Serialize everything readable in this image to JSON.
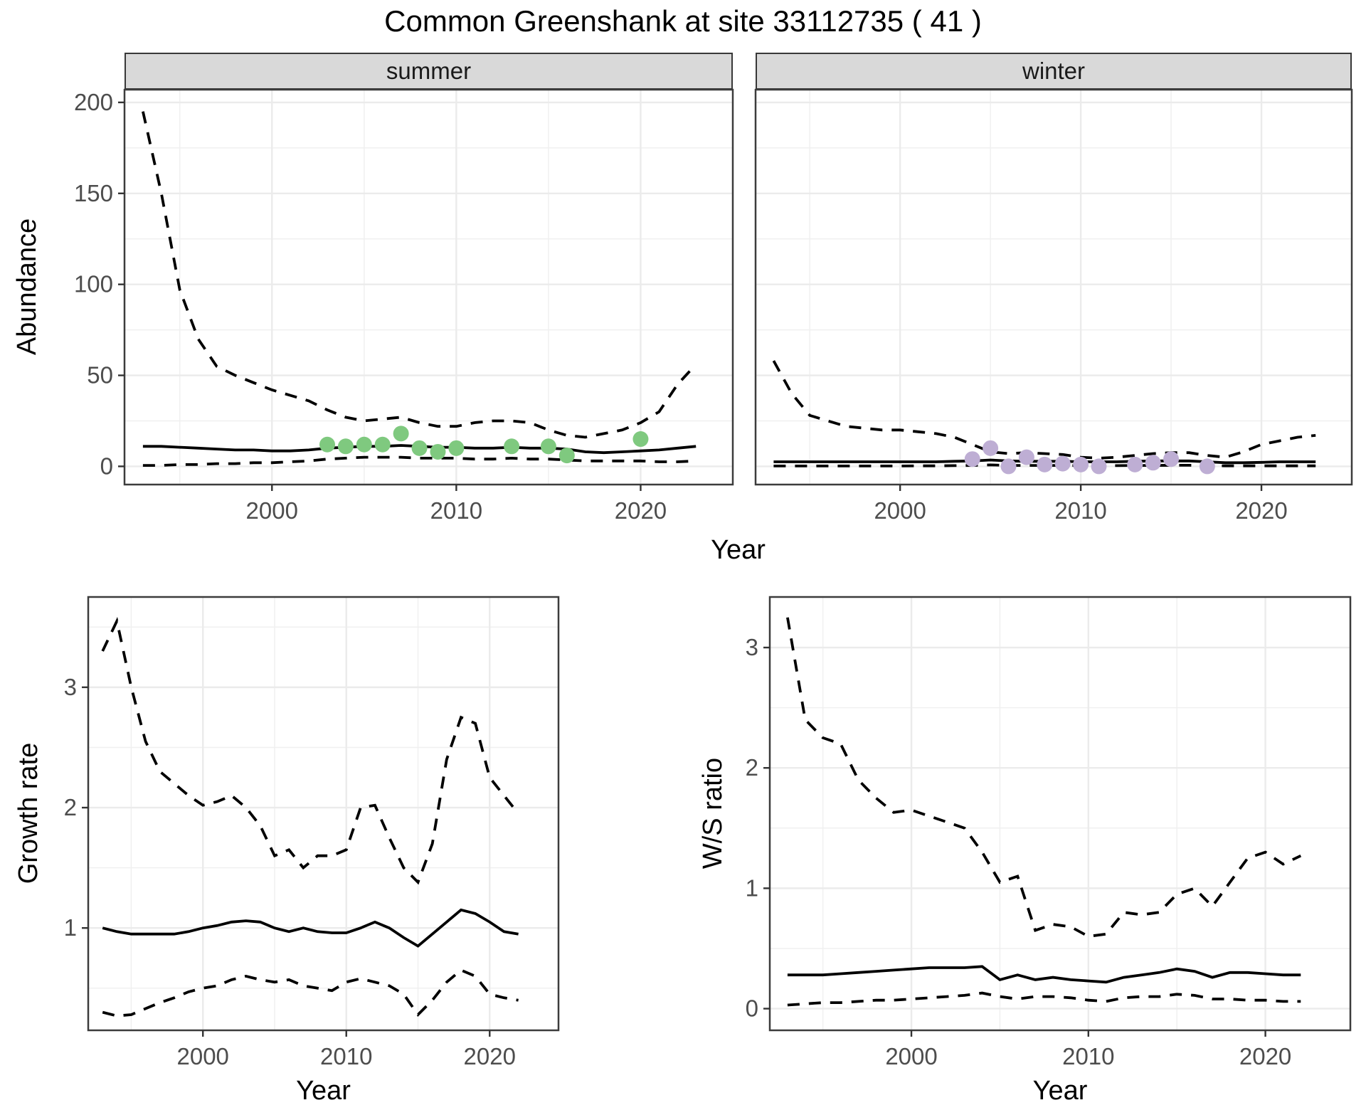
{
  "title": "Common Greenshank at site 33112735 ( 41 )",
  "facets": [
    "summer",
    "winter"
  ],
  "labels": {
    "abundance": "Abundance",
    "year": "Year",
    "growth": "Growth rate",
    "ws": "W/S ratio"
  },
  "colors": {
    "summer_point": "#7FC97F",
    "winter_point": "#BEAED4",
    "line": "#000000",
    "strip_bg": "#D9D9D9",
    "panel_border": "#3C3C3C",
    "grid_major": "#EBEBEB",
    "grid_minor": "#F0F0F0",
    "tick_label": "#4D4D4D"
  },
  "chart_data": [
    {
      "type": "line",
      "facet": "summer",
      "xlabel": "Year",
      "ylabel": "Abundance",
      "xlim": [
        1992,
        2025
      ],
      "ylim": [
        -10,
        207
      ],
      "xticks": [
        2000,
        2010,
        2020
      ],
      "yticks": [
        0,
        50,
        100,
        150,
        200
      ],
      "grid": true,
      "legend": "none",
      "series": [
        {
          "name": "upper-95ci",
          "style": "dashed",
          "x": [
            1993,
            1994,
            1995,
            1996,
            1997,
            1998,
            1999,
            2000,
            2001,
            2002,
            2003,
            2004,
            2005,
            2006,
            2007,
            2008,
            2009,
            2010,
            2011,
            2012,
            2013,
            2014,
            2015,
            2016,
            2017,
            2018,
            2019,
            2020,
            2021,
            2022,
            2023
          ],
          "values": [
            195,
            150,
            97,
            70,
            55,
            50,
            46,
            42,
            39,
            36,
            31,
            27,
            25,
            26,
            27,
            24,
            22,
            22,
            24,
            25,
            25,
            24,
            20,
            17,
            16,
            18,
            20,
            24,
            30,
            45,
            56
          ]
        },
        {
          "name": "median-fit",
          "style": "solid",
          "x": [
            1993,
            1994,
            1995,
            1996,
            1997,
            1998,
            1999,
            2000,
            2001,
            2002,
            2003,
            2004,
            2005,
            2006,
            2007,
            2008,
            2009,
            2010,
            2011,
            2012,
            2013,
            2014,
            2015,
            2016,
            2017,
            2018,
            2019,
            2020,
            2021,
            2022,
            2023
          ],
          "values": [
            11,
            11,
            10.5,
            10,
            9.5,
            9,
            9,
            8.5,
            8.5,
            9,
            10,
            10.5,
            11,
            11,
            11.5,
            11,
            10.5,
            10.5,
            10,
            10,
            10.5,
            10,
            10,
            9.5,
            8,
            7.5,
            8,
            8.5,
            9,
            10,
            11
          ]
        },
        {
          "name": "lower-95ci",
          "style": "dashed",
          "x": [
            1993,
            1994,
            1995,
            1996,
            1997,
            1998,
            1999,
            2000,
            2001,
            2002,
            2003,
            2004,
            2005,
            2006,
            2007,
            2008,
            2009,
            2010,
            2011,
            2012,
            2013,
            2014,
            2015,
            2016,
            2017,
            2018,
            2019,
            2020,
            2021,
            2022,
            2023
          ],
          "values": [
            0.5,
            0.5,
            1,
            1,
            1.5,
            1.5,
            2,
            2,
            2.5,
            3,
            4,
            4.5,
            5,
            5,
            5,
            4.5,
            4.5,
            4.5,
            4,
            4,
            4.5,
            4,
            4,
            3.5,
            3,
            3,
            3,
            3,
            2.5,
            2.5,
            3
          ]
        },
        {
          "name": "observed-counts",
          "style": "points",
          "color": "#7FC97F",
          "x": [
            2003,
            2004,
            2005,
            2006,
            2007,
            2008,
            2009,
            2010,
            2013,
            2015,
            2016,
            2020
          ],
          "values": [
            12,
            11,
            12,
            12,
            18,
            10,
            8,
            10,
            11,
            11,
            6,
            15
          ]
        }
      ]
    },
    {
      "type": "line",
      "facet": "winter",
      "xlabel": "Year",
      "ylabel": "Abundance",
      "xlim": [
        1992,
        2025
      ],
      "ylim": [
        -10,
        207
      ],
      "xticks": [
        2000,
        2010,
        2020
      ],
      "yticks": [
        0,
        50,
        100,
        150,
        200
      ],
      "grid": true,
      "legend": "none",
      "series": [
        {
          "name": "upper-95ci",
          "style": "dashed",
          "x": [
            1993,
            1994,
            1995,
            1996,
            1997,
            1998,
            1999,
            2000,
            2001,
            2002,
            2003,
            2004,
            2005,
            2006,
            2007,
            2008,
            2009,
            2010,
            2011,
            2012,
            2013,
            2014,
            2015,
            2016,
            2017,
            2018,
            2019,
            2020,
            2021,
            2022,
            2023
          ],
          "values": [
            58,
            40,
            28,
            25,
            22,
            21,
            20,
            20,
            19,
            18,
            16,
            12,
            8,
            7,
            7.5,
            7,
            6.5,
            5,
            4.5,
            5,
            6,
            7,
            7.5,
            7.5,
            6,
            5,
            8,
            12,
            14,
            16,
            17
          ]
        },
        {
          "name": "median-fit",
          "style": "solid",
          "x": [
            1993,
            1994,
            1995,
            1996,
            1997,
            1998,
            1999,
            2000,
            2001,
            2002,
            2003,
            2004,
            2005,
            2006,
            2007,
            2008,
            2009,
            2010,
            2011,
            2012,
            2013,
            2014,
            2015,
            2016,
            2017,
            2018,
            2019,
            2020,
            2021,
            2022,
            2023
          ],
          "values": [
            2.5,
            2.5,
            2.5,
            2.5,
            2.5,
            2.5,
            2.5,
            2.5,
            2.5,
            2.5,
            2.8,
            3,
            3.5,
            3,
            2.8,
            2.8,
            2.8,
            2.5,
            2.5,
            2.5,
            2.8,
            3,
            3,
            3,
            2.5,
            2,
            2,
            2.2,
            2.5,
            2.5,
            2.5
          ]
        },
        {
          "name": "lower-95ci",
          "style": "dashed",
          "x": [
            1993,
            1994,
            1995,
            1996,
            1997,
            1998,
            1999,
            2000,
            2001,
            2002,
            2003,
            2004,
            2005,
            2006,
            2007,
            2008,
            2009,
            2010,
            2011,
            2012,
            2013,
            2014,
            2015,
            2016,
            2017,
            2018,
            2019,
            2020,
            2021,
            2022,
            2023
          ],
          "values": [
            0.2,
            0.2,
            0.2,
            0.2,
            0.2,
            0.2,
            0.2,
            0.2,
            0.3,
            0.3,
            0.4,
            0.5,
            0.8,
            0.5,
            0.5,
            0.5,
            0.5,
            0.4,
            0.4,
            0.4,
            0.5,
            0.5,
            0.6,
            0.6,
            0.4,
            0.3,
            0.3,
            0.3,
            0.3,
            0.3,
            0.3
          ]
        },
        {
          "name": "observed-counts",
          "style": "points",
          "color": "#BEAED4",
          "x": [
            2004,
            2005,
            2006,
            2007,
            2008,
            2009,
            2010,
            2011,
            2013,
            2014,
            2015,
            2017
          ],
          "values": [
            4,
            10,
            0,
            5,
            1,
            1.5,
            1,
            0,
            1,
            2,
            4,
            0
          ]
        }
      ]
    },
    {
      "type": "line",
      "facet": "growth-rate",
      "xlabel": "Year",
      "ylabel": "Growth rate",
      "xlim": [
        1992,
        2024.8
      ],
      "ylim": [
        0.15,
        3.75
      ],
      "xticks": [
        2000,
        2010,
        2020
      ],
      "yticks": [
        1,
        2,
        3
      ],
      "grid": true,
      "legend": "none",
      "series": [
        {
          "name": "upper-95ci",
          "style": "dashed",
          "x": [
            1993,
            1994,
            1995,
            1996,
            1997,
            1998,
            1999,
            2000,
            2001,
            2002,
            2003,
            2004,
            2005,
            2006,
            2007,
            2008,
            2009,
            2010,
            2011,
            2012,
            2013,
            2014,
            2015,
            2016,
            2017,
            2018,
            2019,
            2020,
            2021,
            2022
          ],
          "values": [
            3.3,
            3.55,
            3.0,
            2.55,
            2.3,
            2.2,
            2.1,
            2.02,
            2.05,
            2.1,
            2.0,
            1.85,
            1.6,
            1.65,
            1.5,
            1.6,
            1.6,
            1.65,
            2.0,
            2.02,
            1.75,
            1.5,
            1.38,
            1.7,
            2.4,
            2.75,
            2.7,
            2.25,
            2.1,
            1.95
          ]
        },
        {
          "name": "median-fit",
          "style": "solid",
          "x": [
            1993,
            1994,
            1995,
            1996,
            1997,
            1998,
            1999,
            2000,
            2001,
            2002,
            2003,
            2004,
            2005,
            2006,
            2007,
            2008,
            2009,
            2010,
            2011,
            2012,
            2013,
            2014,
            2015,
            2016,
            2017,
            2018,
            2019,
            2020,
            2021,
            2022
          ],
          "values": [
            1.0,
            0.97,
            0.95,
            0.95,
            0.95,
            0.95,
            0.97,
            1.0,
            1.02,
            1.05,
            1.06,
            1.05,
            1.0,
            0.97,
            1.0,
            0.97,
            0.96,
            0.96,
            1.0,
            1.05,
            1.0,
            0.92,
            0.85,
            0.95,
            1.05,
            1.15,
            1.12,
            1.05,
            0.97,
            0.95
          ]
        },
        {
          "name": "lower-95ci",
          "style": "dashed",
          "x": [
            1993,
            1994,
            1995,
            1996,
            1997,
            1998,
            1999,
            2000,
            2001,
            2002,
            2003,
            2004,
            2005,
            2006,
            2007,
            2008,
            2009,
            2010,
            2011,
            2012,
            2013,
            2014,
            2015,
            2016,
            2017,
            2018,
            2019,
            2020,
            2021,
            2022
          ],
          "values": [
            0.3,
            0.27,
            0.28,
            0.33,
            0.38,
            0.42,
            0.47,
            0.5,
            0.52,
            0.57,
            0.6,
            0.57,
            0.55,
            0.57,
            0.52,
            0.5,
            0.48,
            0.55,
            0.58,
            0.55,
            0.52,
            0.45,
            0.28,
            0.4,
            0.55,
            0.65,
            0.6,
            0.45,
            0.42,
            0.4
          ]
        }
      ]
    },
    {
      "type": "line",
      "facet": "ws-ratio",
      "xlabel": "Year",
      "ylabel": "W/S ratio",
      "xlim": [
        1992,
        2024.8
      ],
      "ylim": [
        -0.18,
        3.42
      ],
      "xticks": [
        2000,
        2010,
        2020
      ],
      "yticks": [
        0,
        1,
        2,
        3
      ],
      "grid": true,
      "legend": "none",
      "series": [
        {
          "name": "upper-95ci",
          "style": "dashed",
          "x": [
            1993,
            1994,
            1995,
            1996,
            1997,
            1998,
            1999,
            2000,
            2001,
            2002,
            2003,
            2004,
            2005,
            2006,
            2007,
            2008,
            2009,
            2010,
            2011,
            2012,
            2013,
            2014,
            2015,
            2016,
            2017,
            2018,
            2019,
            2020,
            2021,
            2022
          ],
          "values": [
            3.25,
            2.4,
            2.25,
            2.2,
            1.9,
            1.75,
            1.63,
            1.65,
            1.6,
            1.55,
            1.5,
            1.3,
            1.05,
            1.1,
            0.65,
            0.7,
            0.68,
            0.6,
            0.62,
            0.8,
            0.78,
            0.8,
            0.95,
            1.0,
            0.85,
            1.05,
            1.25,
            1.3,
            1.2,
            1.27
          ]
        },
        {
          "name": "median-fit",
          "style": "solid",
          "x": [
            1993,
            1994,
            1995,
            1996,
            1997,
            1998,
            1999,
            2000,
            2001,
            2002,
            2003,
            2004,
            2005,
            2006,
            2007,
            2008,
            2009,
            2010,
            2011,
            2012,
            2013,
            2014,
            2015,
            2016,
            2017,
            2018,
            2019,
            2020,
            2021,
            2022
          ],
          "values": [
            0.28,
            0.28,
            0.28,
            0.29,
            0.3,
            0.31,
            0.32,
            0.33,
            0.34,
            0.34,
            0.34,
            0.35,
            0.24,
            0.28,
            0.24,
            0.26,
            0.24,
            0.23,
            0.22,
            0.26,
            0.28,
            0.3,
            0.33,
            0.31,
            0.26,
            0.3,
            0.3,
            0.29,
            0.28,
            0.28
          ]
        },
        {
          "name": "lower-95ci",
          "style": "dashed",
          "x": [
            1993,
            1994,
            1995,
            1996,
            1997,
            1998,
            1999,
            2000,
            2001,
            2002,
            2003,
            2004,
            2005,
            2006,
            2007,
            2008,
            2009,
            2010,
            2011,
            2012,
            2013,
            2014,
            2015,
            2016,
            2017,
            2018,
            2019,
            2020,
            2021,
            2022
          ],
          "values": [
            0.03,
            0.04,
            0.05,
            0.05,
            0.06,
            0.07,
            0.07,
            0.08,
            0.09,
            0.1,
            0.11,
            0.13,
            0.1,
            0.08,
            0.1,
            0.1,
            0.09,
            0.07,
            0.06,
            0.09,
            0.1,
            0.1,
            0.12,
            0.11,
            0.08,
            0.08,
            0.07,
            0.07,
            0.06,
            0.06
          ]
        }
      ]
    }
  ]
}
